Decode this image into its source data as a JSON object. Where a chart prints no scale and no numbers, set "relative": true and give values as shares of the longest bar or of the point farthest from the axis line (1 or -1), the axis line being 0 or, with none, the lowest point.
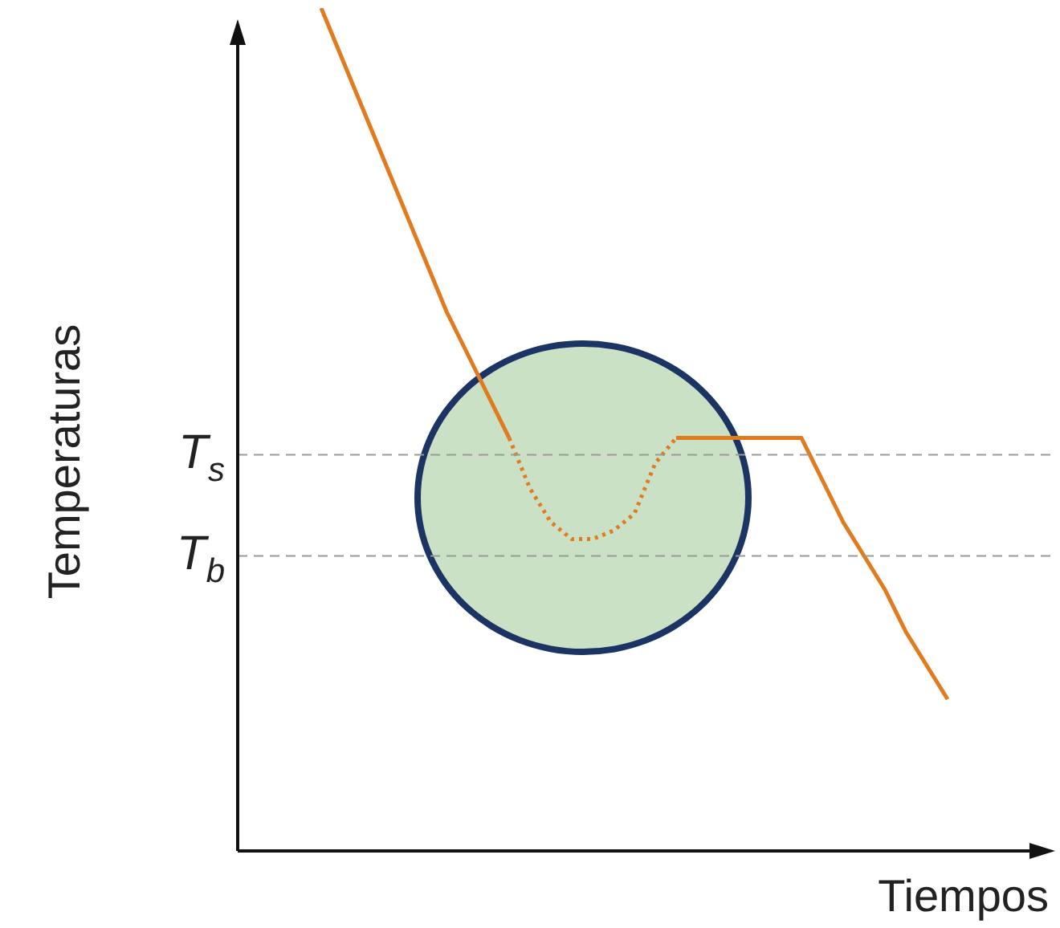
{
  "chart_data": {
    "type": "line",
    "relative": true,
    "xlabel": "Tiempos",
    "ylabel": "Temperaturas",
    "categories": [
      null,
      null,
      null,
      null,
      null,
      null,
      null,
      null,
      null,
      null,
      null,
      null,
      null,
      null,
      null,
      null,
      null,
      null,
      null,
      null,
      null,
      null,
      null,
      null,
      null,
      null,
      null,
      null,
      null,
      null,
      null,
      null,
      null,
      null,
      null,
      null,
      null,
      null,
      null,
      null
    ],
    "series": [
      {
        "color": "#e07b20",
        "line_style": "solid",
        "values": [
          null,
          null,
          null,
          null,
          1,
          0.94,
          0.88,
          0.82,
          0.76,
          0.7,
          0.64,
          0.59,
          0.54,
          0.49,
          null,
          null,
          null,
          null,
          null,
          null,
          null,
          null,
          null,
          null,
          null,
          null,
          null,
          null,
          null,
          null,
          null,
          null,
          null,
          null,
          null,
          null,
          null,
          null,
          null,
          null
        ]
      },
      {
        "color": "#e07b20",
        "line_style": "dotted",
        "values": [
          null,
          null,
          null,
          null,
          null,
          null,
          null,
          null,
          null,
          null,
          null,
          null,
          null,
          0.49,
          0.43,
          0.39,
          0.37,
          0.37,
          0.38,
          0.4,
          0.46,
          0.49,
          null,
          null,
          null,
          null,
          null,
          null,
          null,
          null,
          null,
          null,
          null,
          null,
          null,
          null,
          null,
          null,
          null,
          null
        ]
      },
      {
        "color": "#e07b20",
        "line_style": "solid",
        "values": [
          null,
          null,
          null,
          null,
          null,
          null,
          null,
          null,
          null,
          null,
          null,
          null,
          null,
          null,
          null,
          null,
          null,
          null,
          null,
          null,
          null,
          0.49,
          0.49,
          0.49,
          0.49,
          0.49,
          0.49,
          0.49,
          0.44,
          0.39,
          0.35,
          0.31,
          0.26,
          0.22,
          0.18,
          null,
          null,
          null,
          null,
          null
        ]
      }
    ],
    "ref_lines": [
      {
        "axis": "y",
        "value": 0.47,
        "label": "T$_{s}$",
        "color": "#999999",
        "line_style": "dashed"
      },
      {
        "axis": "y",
        "value": 0.35,
        "label": "T$_{b}$",
        "color": "#999999",
        "line_style": "dashed"
      }
    ],
    "legend": false,
    "marker": "none"
  }
}
